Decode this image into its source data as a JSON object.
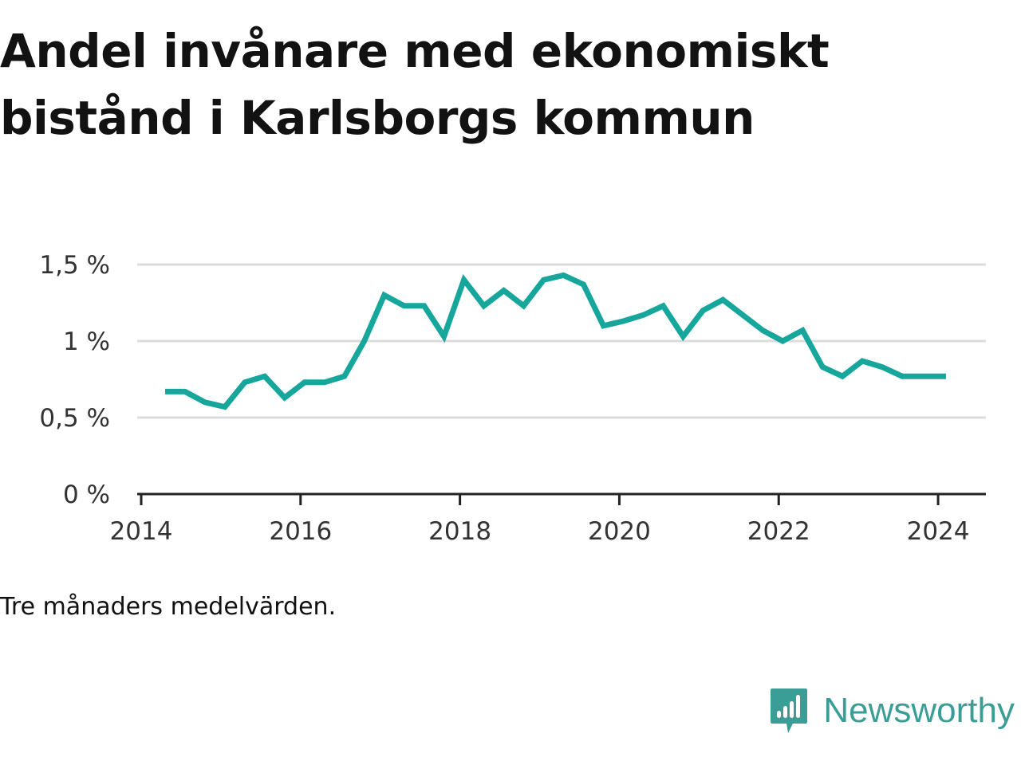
{
  "title": "Andel invånare med ekonomiskt bistånd i Karlsborgs kommun",
  "note": "Tre månaders medelvärden.",
  "brand": {
    "name": "Newsworthy",
    "icon": "newsworthy-logo-icon",
    "color": "#3a9e96"
  },
  "chart_data": {
    "type": "line",
    "title": "",
    "xlabel": "",
    "ylabel": "",
    "xlim": [
      2013.95,
      2024.6
    ],
    "ylim": [
      0,
      1.5
    ],
    "grid": true,
    "legend": "none",
    "line_color": "#16a69c",
    "x_ticks": [
      {
        "value": 2014,
        "label": "2014"
      },
      {
        "value": 2016,
        "label": "2016"
      },
      {
        "value": 2018,
        "label": "2018"
      },
      {
        "value": 2020,
        "label": "2020"
      },
      {
        "value": 2022,
        "label": "2022"
      },
      {
        "value": 2024,
        "label": "2024"
      }
    ],
    "y_ticks": [
      {
        "value": 0,
        "label": "0 %"
      },
      {
        "value": 0.5,
        "label": "0,5 %"
      },
      {
        "value": 1,
        "label": "1 %"
      },
      {
        "value": 1.5,
        "label": "1,5 %"
      }
    ],
    "series": [
      {
        "name": "",
        "x": [
          2014.3,
          2014.55,
          2014.8,
          2015.05,
          2015.3,
          2015.55,
          2015.8,
          2016.05,
          2016.3,
          2016.55,
          2016.8,
          2017.05,
          2017.3,
          2017.55,
          2017.8,
          2018.05,
          2018.3,
          2018.55,
          2018.8,
          2019.05,
          2019.3,
          2019.55,
          2019.8,
          2020.05,
          2020.3,
          2020.55,
          2020.8,
          2021.05,
          2021.3,
          2021.55,
          2021.8,
          2022.05,
          2022.3,
          2022.55,
          2022.8,
          2023.05,
          2023.3,
          2023.55,
          2023.8,
          2024.1
        ],
        "y": [
          0.67,
          0.67,
          0.6,
          0.57,
          0.73,
          0.77,
          0.63,
          0.73,
          0.73,
          0.77,
          1.0,
          1.3,
          1.23,
          1.23,
          1.03,
          1.4,
          1.23,
          1.33,
          1.23,
          1.4,
          1.43,
          1.37,
          1.1,
          1.13,
          1.17,
          1.23,
          1.03,
          1.2,
          1.27,
          1.17,
          1.07,
          1.0,
          1.07,
          0.83,
          0.77,
          0.87,
          0.83,
          0.77,
          0.77,
          0.77
        ]
      }
    ]
  }
}
